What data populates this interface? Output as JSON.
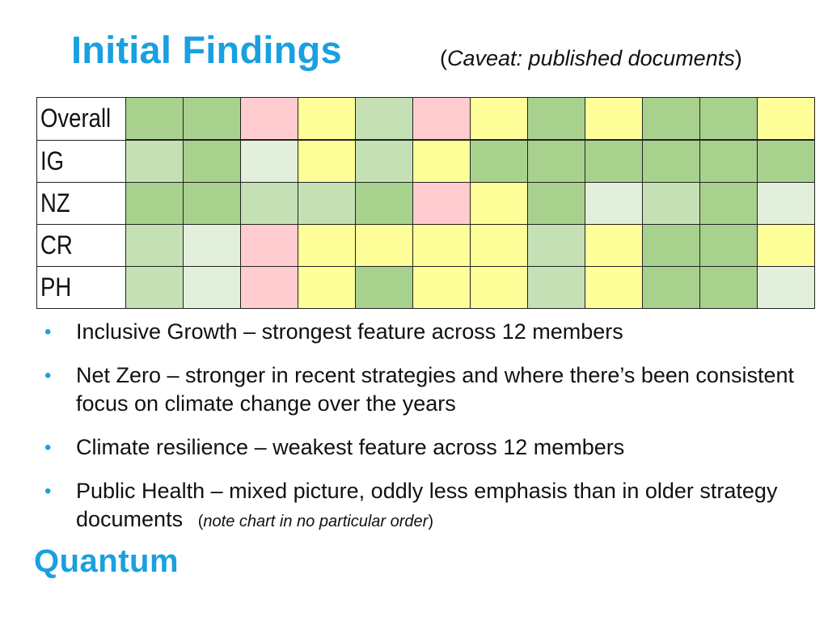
{
  "title": "Initial Findings",
  "caveat": {
    "open": "(",
    "text": "Caveat: published documents",
    "close": ")"
  },
  "colors": {
    "dark_green": "#a9d18e",
    "mid_green": "#c5e0b4",
    "light_green": "#e2efda",
    "yellow": "#ffff99",
    "pink": "#ffccd0"
  },
  "grid": {
    "rows": [
      {
        "label": "Overall",
        "cells": [
          "dark_green",
          "dark_green",
          "pink",
          "yellow",
          "mid_green",
          "pink",
          "yellow",
          "dark_green",
          "yellow",
          "dark_green",
          "dark_green",
          "yellow"
        ]
      },
      {
        "label": "IG",
        "cells": [
          "mid_green",
          "dark_green",
          "light_green",
          "yellow",
          "mid_green",
          "yellow",
          "dark_green",
          "dark_green",
          "dark_green",
          "dark_green",
          "dark_green",
          "dark_green"
        ]
      },
      {
        "label": "NZ",
        "cells": [
          "dark_green",
          "dark_green",
          "mid_green",
          "mid_green",
          "dark_green",
          "pink",
          "yellow",
          "dark_green",
          "light_green",
          "mid_green",
          "dark_green",
          "light_green"
        ]
      },
      {
        "label": "CR",
        "cells": [
          "mid_green",
          "light_green",
          "pink",
          "yellow",
          "yellow",
          "yellow",
          "yellow",
          "mid_green",
          "yellow",
          "dark_green",
          "dark_green",
          "yellow"
        ]
      },
      {
        "label": "PH",
        "cells": [
          "mid_green",
          "light_green",
          "pink",
          "yellow",
          "dark_green",
          "yellow",
          "yellow",
          "mid_green",
          "yellow",
          "dark_green",
          "dark_green",
          "light_green"
        ]
      }
    ]
  },
  "bullets": [
    {
      "text": "Inclusive Growth – strongest feature across 12 members"
    },
    {
      "text": "Net Zero – stronger in recent strategies and where there’s been consistent focus on climate change over the years"
    },
    {
      "text": "Climate resilience – weakest feature across 12 members"
    },
    {
      "text": "Public Health – mixed picture, oddly less emphasis than in older strategy documents"
    }
  ],
  "note": {
    "open": "(",
    "text": "note chart in no particular order",
    "close": ")"
  },
  "logo": "Quantum"
}
